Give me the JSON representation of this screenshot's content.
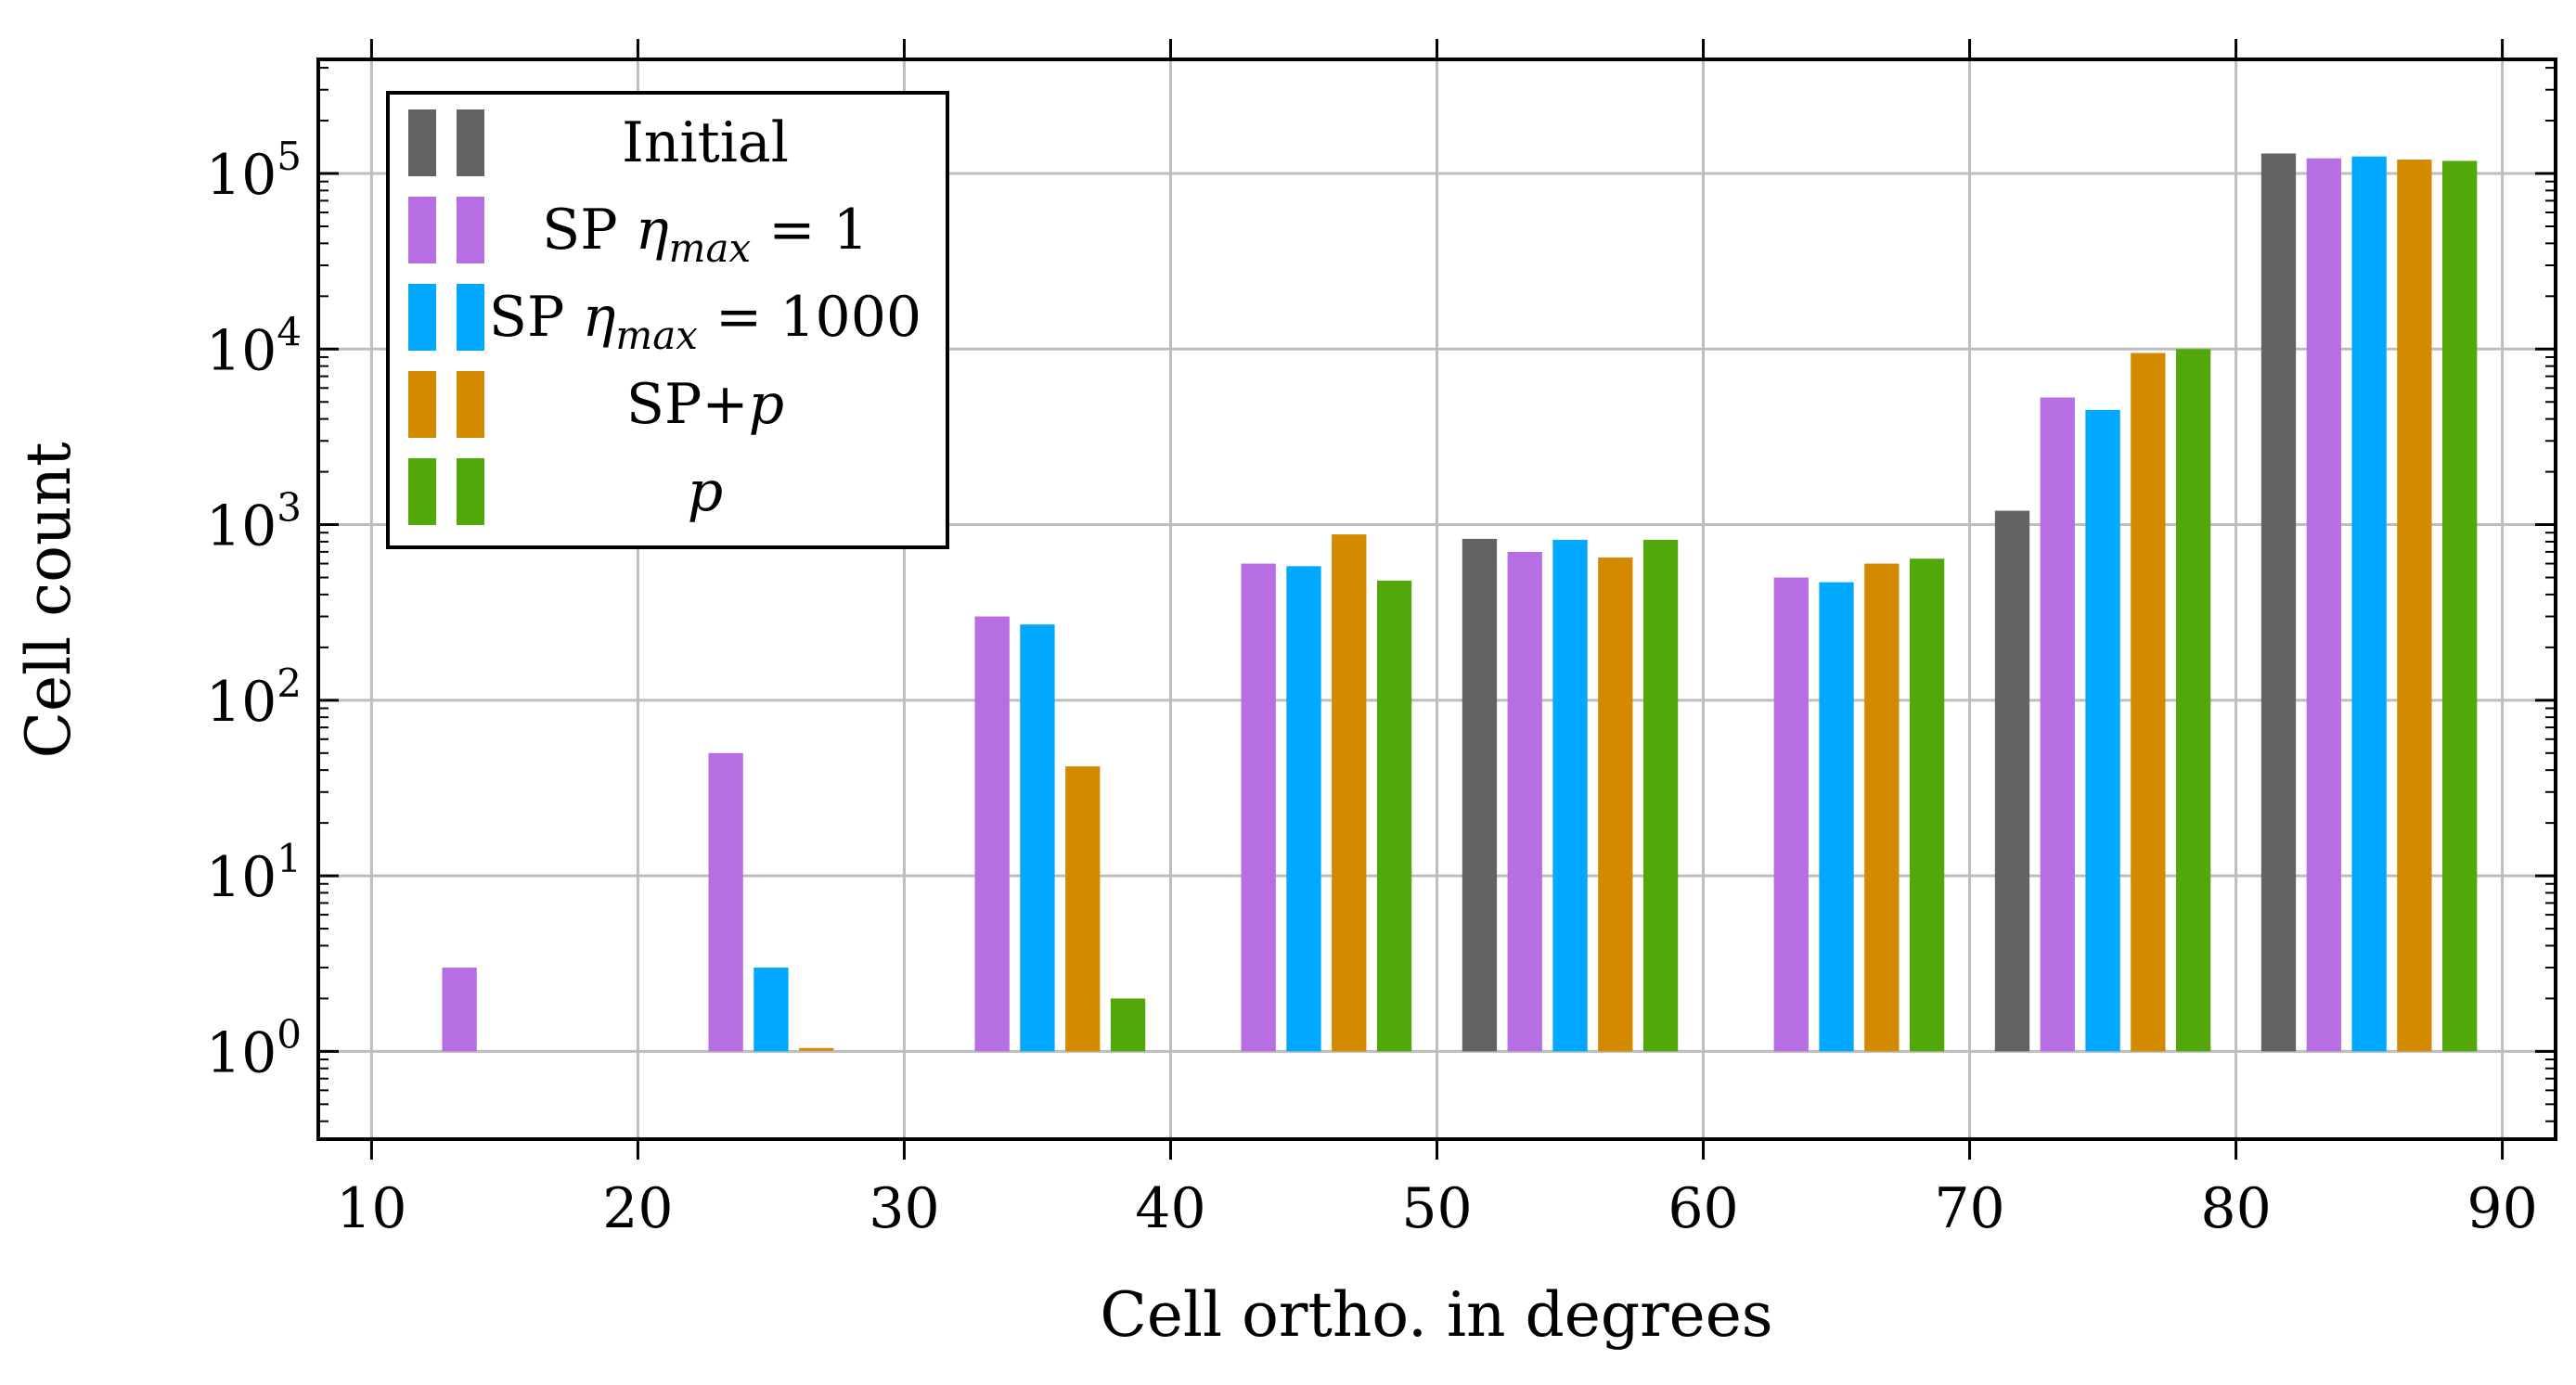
{
  "chart_data": {
    "type": "bar",
    "scale_y": "log",
    "xlabel": "Cell ortho. in degrees",
    "ylabel": "Cell count",
    "xlim": [
      8,
      92
    ],
    "ylim_log10": [
      -0.5,
      5.65
    ],
    "x_ticks": [
      10,
      20,
      30,
      40,
      50,
      60,
      70,
      80,
      90
    ],
    "y_tick_base": "10",
    "y_tick_exponents": [
      "0",
      "1",
      "2",
      "3",
      "4",
      "5"
    ],
    "baseline": 1,
    "bar_width": 1.3,
    "bar_pitch": 1.7,
    "bin_centers": [
      15,
      25,
      35,
      45,
      55,
      65,
      75,
      85
    ],
    "legend_position": "top-left",
    "series": [
      {
        "name": "Initial",
        "color": "#636363",
        "values": [
          null,
          null,
          null,
          null,
          830,
          null,
          1200,
          130000
        ]
      },
      {
        "name": "SP ηmax = 1",
        "color": "#b86ee3",
        "values": [
          3,
          50,
          300,
          600,
          700,
          500,
          5300,
          122000
        ]
      },
      {
        "name": "SP ηmax = 1000",
        "color": "#00a8ff",
        "values": [
          null,
          3,
          270,
          580,
          820,
          470,
          4500,
          125000
        ]
      },
      {
        "name": "SP+p",
        "color": "#d48a00",
        "values": [
          null,
          1.02,
          42,
          880,
          650,
          600,
          9500,
          120000
        ]
      },
      {
        "name": "p",
        "color": "#52a80a",
        "values": [
          null,
          null,
          2,
          480,
          820,
          640,
          10000,
          118000
        ]
      }
    ],
    "legend": [
      {
        "label": "Initial",
        "segments": [
          {
            "t": "Initial",
            "s": "normal"
          }
        ]
      },
      {
        "label": "SP ηmax = 1",
        "segments": [
          {
            "t": "SP ",
            "s": "normal"
          },
          {
            "t": "η",
            "s": "italic"
          },
          {
            "t": "max",
            "s": "sub"
          },
          {
            "t": " = 1",
            "s": "normal"
          }
        ]
      },
      {
        "label": "SP ηmax = 1000",
        "segments": [
          {
            "t": "SP ",
            "s": "normal"
          },
          {
            "t": "η",
            "s": "italic"
          },
          {
            "t": "max",
            "s": "sub"
          },
          {
            "t": " = 1000",
            "s": "normal"
          }
        ]
      },
      {
        "label": "SP+p",
        "segments": [
          {
            "t": "SP+",
            "s": "normal"
          },
          {
            "t": "p",
            "s": "italic"
          }
        ]
      },
      {
        "label": "p",
        "segments": [
          {
            "t": "p",
            "s": "italic"
          }
        ]
      }
    ]
  }
}
